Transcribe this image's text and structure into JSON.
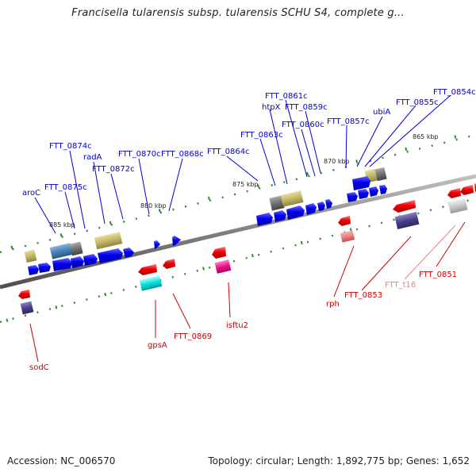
{
  "title": "Francisella tularensis subsp. tularensis SCHU S4, complete g...",
  "footer": {
    "accession": "Accession: NC_006570",
    "summary": "Topology: circular; Length: 1,892,775 bp; Genes: 1,652"
  },
  "colors": {
    "forward_label": "#0000cc",
    "reverse_label": "#cc0000",
    "trna_label": "#f08080",
    "backbone": "#808080",
    "tick": "#2e8b2e"
  },
  "kbp_labels": [
    "865 kbp",
    "870 kbp",
    "875 kbp",
    "880 kbp",
    "885 kbp"
  ],
  "forward_genes": [
    "FTT_0854c",
    "FTT_0855c",
    "ubiA",
    "FTT_0857c",
    "FTT_0859c",
    "FTT_0860c",
    "FTT_0861c",
    "htpX",
    "FTT_0863c",
    "FTT_0864c",
    "FTT_0868c",
    "FTT_0870c",
    "FTT_0872c",
    "radA",
    "FTT_0874c",
    "FTT_0875c",
    "aroC"
  ],
  "reverse_genes": [
    "FTT_0851",
    "FTT_t16",
    "FTT_0853",
    "rph",
    "isftu2",
    "FTT_0869",
    "gpsA",
    "sodC"
  ]
}
